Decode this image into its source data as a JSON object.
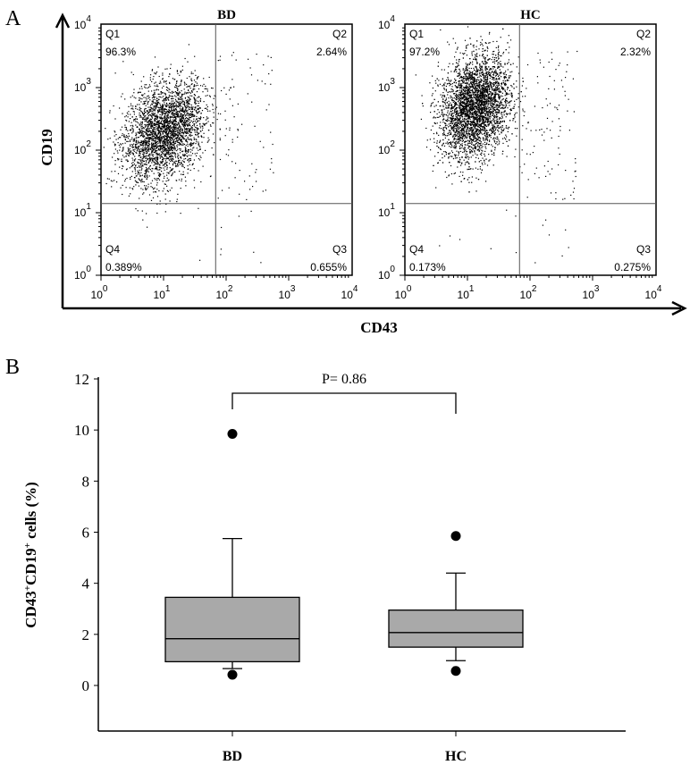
{
  "chart_data": [
    {
      "type": "scatter",
      "panel_label": "A",
      "shared_xlabel": "CD43",
      "shared_ylabel": "CD19",
      "x_scale": "log",
      "y_scale": "log",
      "xlim": [
        1,
        10000
      ],
      "ylim": [
        1,
        20000
      ],
      "x_tick_labels": [
        {
          "base": "10",
          "exp": "0"
        },
        {
          "base": "10",
          "exp": "1"
        },
        {
          "base": "10",
          "exp": "2"
        },
        {
          "base": "10",
          "exp": "3"
        },
        {
          "base": "10",
          "exp": "4"
        }
      ],
      "y_tick_labels": [
        {
          "base": "10",
          "exp": "0"
        },
        {
          "base": "10",
          "exp": "1"
        },
        {
          "base": "10",
          "exp": "2"
        },
        {
          "base": "10",
          "exp": "3"
        },
        {
          "base": "10",
          "exp": "4"
        }
      ],
      "panels": [
        {
          "title": "BD",
          "gate": {
            "x": 68,
            "y": 14
          },
          "quadrants": {
            "Q1": {
              "label": "Q1",
              "value": "96.3%"
            },
            "Q2": {
              "label": "Q2",
              "value": "2.64%"
            },
            "Q3": {
              "label": "Q3",
              "value": "0.655%"
            },
            "Q4": {
              "label": "Q4",
              "value": "0.389%"
            }
          },
          "population_center": {
            "x": 10,
            "y": 200
          }
        },
        {
          "title": "HC",
          "gate": {
            "x": 68,
            "y": 14
          },
          "quadrants": {
            "Q1": {
              "label": "Q1",
              "value": "97.2%"
            },
            "Q2": {
              "label": "Q2",
              "value": "2.32%"
            },
            "Q3": {
              "label": "Q3",
              "value": "0.275%"
            },
            "Q4": {
              "label": "Q4",
              "value": "0.173%"
            }
          },
          "population_center": {
            "x": 13,
            "y": 500
          }
        }
      ]
    },
    {
      "type": "box",
      "panel_label": "B",
      "ylabel_parts": [
        "CD43",
        "+",
        "CD19",
        "+",
        " cells (%)"
      ],
      "ylim": [
        -1.8,
        12
      ],
      "y_ticks": [
        "0",
        "2",
        "4",
        "6",
        "8",
        "10",
        "12"
      ],
      "categories": [
        "BD",
        "HC"
      ],
      "annotation": "P= 0.86",
      "box_color": "#a9a9a9",
      "boxes": [
        {
          "name": "BD",
          "whisker_low": 0.66,
          "q1": 0.93,
          "median": 1.83,
          "q3": 3.45,
          "whisker_high": 5.75,
          "outliers": [
            9.85,
            0.42
          ]
        },
        {
          "name": "HC",
          "whisker_low": 0.97,
          "q1": 1.5,
          "median": 2.07,
          "q3": 2.95,
          "whisker_high": 4.4,
          "outliers": [
            5.85,
            0.57
          ]
        }
      ]
    }
  ]
}
